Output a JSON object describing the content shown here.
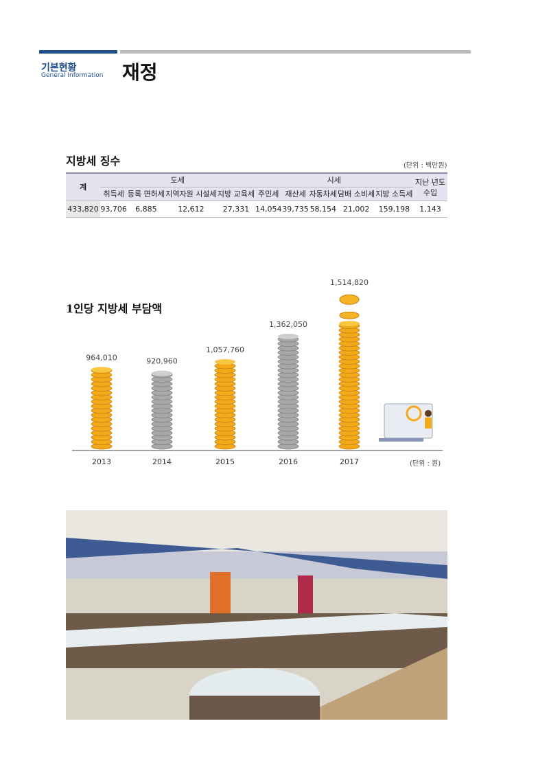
{
  "header": {
    "section_ko": "기본현황",
    "section_en": "General Information",
    "title": "재정"
  },
  "tax_table": {
    "title": "지방세 징수",
    "unit": "(단위 : 백만원)",
    "total_label": "계",
    "group_do": "도세",
    "group_si": "시세",
    "last_year_label": "지난 년도 수입",
    "do_columns": [
      "취득세",
      "등록 면허세",
      "지역자원 시설세",
      "지방 교육세"
    ],
    "si_columns": [
      "주민세",
      "재산세",
      "자동차세",
      "담배 소비세",
      "지방 소득세"
    ],
    "values": [
      "433,820",
      "93,706",
      "6,885",
      "12,612",
      "27,331",
      "14,054",
      "39,735",
      "58,154",
      "21,002",
      "159,198",
      "1,143"
    ]
  },
  "chart_data": {
    "type": "bar",
    "title": "1인당 지방세 부담액",
    "unit": "(단위 : 원)",
    "categories": [
      "2013",
      "2014",
      "2015",
      "2016",
      "2017"
    ],
    "values": [
      964010,
      920960,
      1057760,
      1362050,
      1514820
    ],
    "labels": [
      "964,010",
      "920,960",
      "1,057,760",
      "1,362,050",
      "1,514,820"
    ],
    "colors": [
      "#f2a91a",
      "#a8a8a8",
      "#f2a91a",
      "#a8a8a8",
      "#f2a91a"
    ]
  },
  "photo": {
    "description_visible": false
  }
}
